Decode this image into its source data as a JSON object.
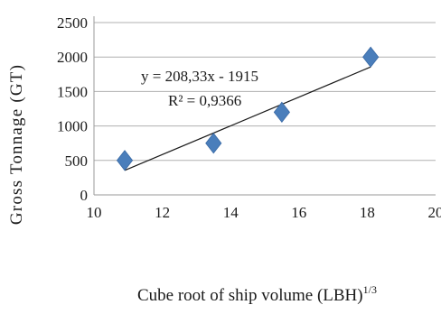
{
  "chart_data": {
    "type": "scatter",
    "xlabel": "Cube root of ship volume (LBH)",
    "xlabel_superscript": "1/3",
    "ylabel": "Gross Tonnage (GT)",
    "xlim": [
      10,
      20
    ],
    "ylim": [
      0,
      2500
    ],
    "x_ticks": [
      "10",
      "12",
      "14",
      "16",
      "18",
      "20"
    ],
    "y_ticks": [
      "0",
      "500",
      "1000",
      "1500",
      "2000",
      "2500"
    ],
    "grid": "horizontal",
    "marker": "diamond",
    "marker_color": "#4a7ebb",
    "series": [
      {
        "x": [
          10.9,
          13.5,
          15.5,
          18.1
        ],
        "y": [
          500,
          750,
          1200,
          2000
        ]
      }
    ],
    "trendline": {
      "slope": 208.33,
      "intercept": -1915,
      "x_range": [
        10.9,
        18.1
      ],
      "equation": "y = 208,33x - 1915",
      "r_squared": "R² = 0,9366"
    }
  }
}
